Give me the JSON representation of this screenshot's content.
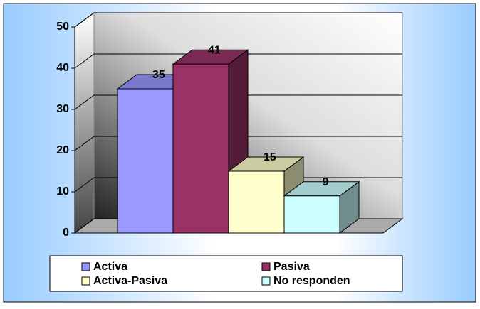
{
  "chart_data": {
    "type": "bar",
    "categories": [
      "Activa",
      "Pasiva",
      "Activa-Pasiva",
      "No responden"
    ],
    "values": [
      35,
      41,
      15,
      9
    ],
    "colors": [
      "#9999ff",
      "#993366",
      "#ffffcc",
      "#ccffff"
    ],
    "ylim": [
      0,
      50
    ],
    "yticks": [
      0,
      10,
      20,
      30,
      40,
      50
    ],
    "grid": true,
    "legend": "bottom"
  }
}
